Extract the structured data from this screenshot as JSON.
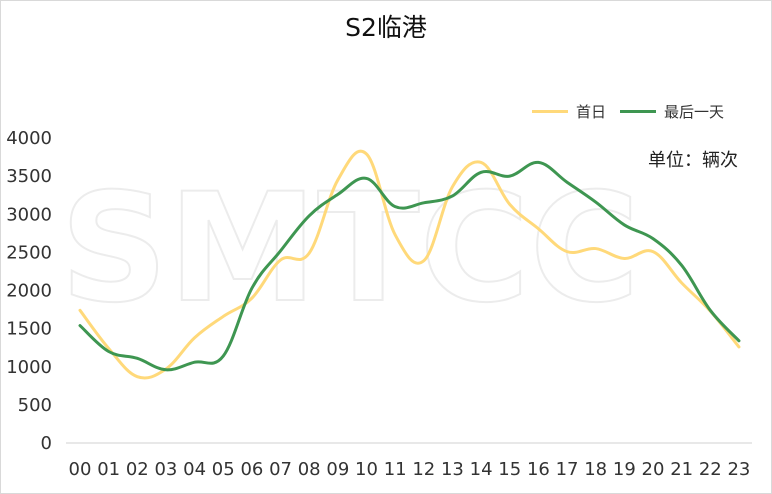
{
  "chart_data": {
    "type": "line",
    "title": "S2临港",
    "unit_label": "单位：辆次",
    "watermark": "SMTCC",
    "categories": [
      "00",
      "01",
      "02",
      "03",
      "04",
      "05",
      "06",
      "07",
      "08",
      "09",
      "10",
      "11",
      "12",
      "13",
      "14",
      "15",
      "16",
      "17",
      "18",
      "19",
      "20",
      "21",
      "22",
      "23"
    ],
    "series": [
      {
        "name": "首日",
        "color": "#FFD97A",
        "values": [
          1740,
          1240,
          870,
          970,
          1380,
          1660,
          1900,
          2400,
          2490,
          3450,
          3790,
          2730,
          2390,
          3360,
          3680,
          3130,
          2810,
          2510,
          2550,
          2420,
          2510,
          2100,
          1730,
          1260
        ]
      },
      {
        "name": "最后一天",
        "color": "#3E9651",
        "values": [
          1540,
          1200,
          1110,
          960,
          1060,
          1140,
          2030,
          2520,
          2980,
          3260,
          3470,
          3100,
          3150,
          3240,
          3550,
          3500,
          3680,
          3420,
          3160,
          2860,
          2680,
          2330,
          1740,
          1340
        ]
      }
    ],
    "ylim": [
      0,
      4000
    ],
    "yticks": [
      0,
      500,
      1000,
      1500,
      2000,
      2500,
      3000,
      3500,
      4000
    ],
    "grid": false,
    "legend_position": "top-right"
  }
}
